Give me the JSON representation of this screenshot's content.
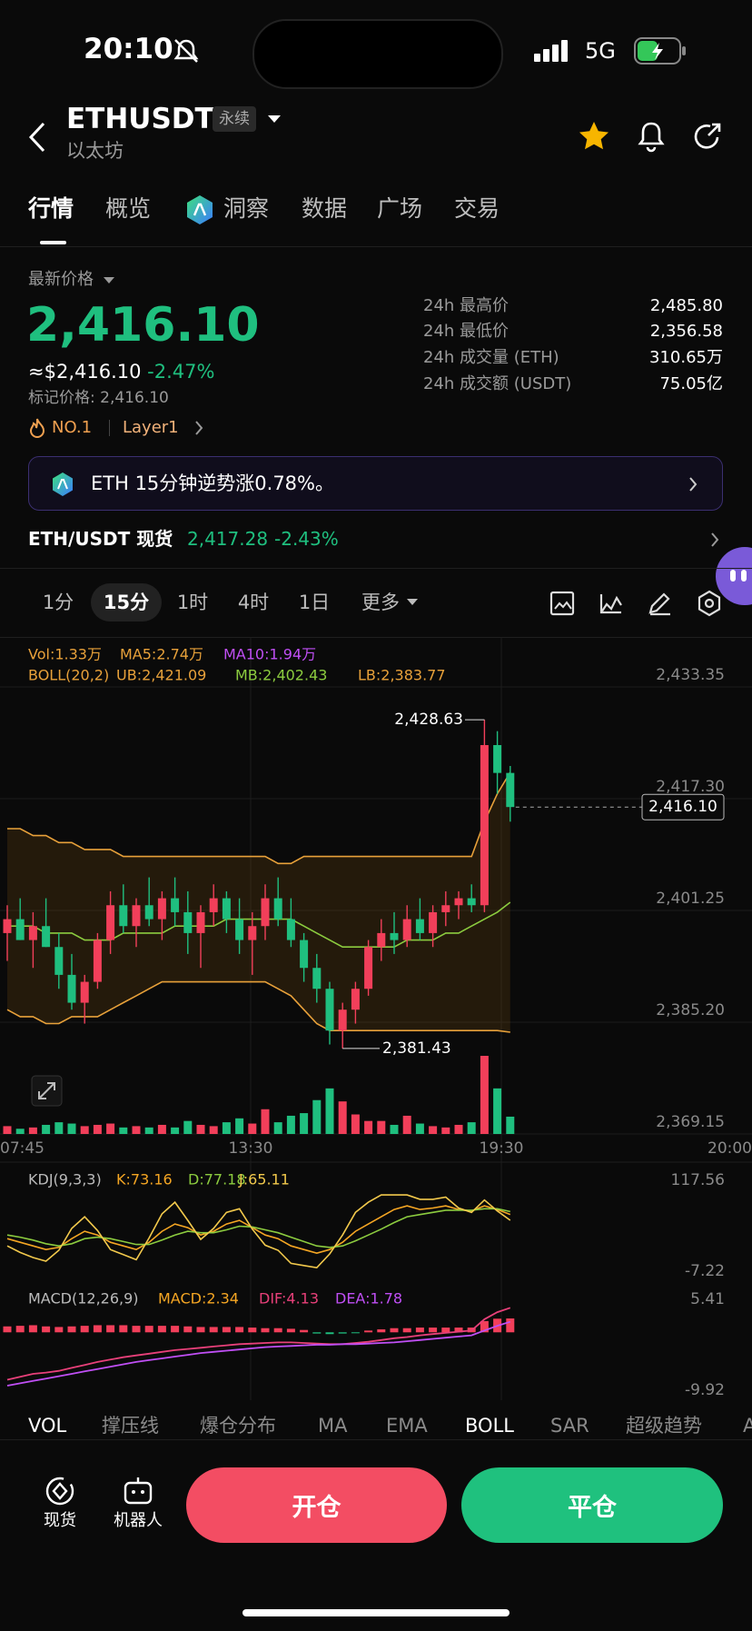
{
  "status_bar": {
    "time": "20:10",
    "network": "5G"
  },
  "header": {
    "symbol": "ETHUSDT",
    "contract": "永续",
    "name": "以太坊"
  },
  "tabs": [
    "行情",
    "概览",
    "洞察",
    "数据",
    "广场",
    "交易"
  ],
  "price": {
    "label": "最新价格",
    "last": "2,416.10",
    "usd": "≈$2,416.10",
    "change": "-2.47%",
    "mark": "标记价格: 2,416.10",
    "rank": "NO.1",
    "sector": "Layer1"
  },
  "stats": [
    {
      "label": "24h 最高价",
      "value": "2,485.80"
    },
    {
      "label": "24h 最低价",
      "value": "2,356.58"
    },
    {
      "label": "24h 成交量 (ETH)",
      "value": "310.65万"
    },
    {
      "label": "24h 成交额 (USDT)",
      "value": "75.05亿"
    }
  ],
  "banner": "ETH 15分钟逆势涨0.78%。",
  "spot": {
    "label": "ETH/USDT 现货",
    "price": "2,417.28",
    "change": "-2.43%"
  },
  "intervals": [
    "1分",
    "15分",
    "1时",
    "4时",
    "1日",
    "更多"
  ],
  "chart": {
    "type": "candlestick",
    "legend": {
      "vol": "Vol:1.33万",
      "ma5": "MA5:2.74万",
      "ma10": "MA10:1.94万",
      "boll": "BOLL(20,2)",
      "ub": "UB:2,421.09",
      "mb": "MB:2,402.43",
      "lb": "LB:2,383.77"
    },
    "ylim": [
      2369.15,
      2433.35
    ],
    "yticks": [
      {
        "value": 2433.35,
        "label": "2,433.35"
      },
      {
        "value": 2417.3,
        "label": "2,417.30"
      },
      {
        "value": 2401.25,
        "label": "2,401.25"
      },
      {
        "value": 2385.2,
        "label": "2,385.20"
      },
      {
        "value": 2369.15,
        "label": "2,369.15"
      }
    ],
    "x_labels": [
      "07:45",
      "13:30",
      "19:30",
      "20:00"
    ],
    "up_color": "#f23f5a",
    "down_color": "#1fbf7f",
    "open": [
      2398,
      2400,
      2397,
      2399,
      2396,
      2392,
      2388,
      2391,
      2397,
      2402,
      2399,
      2402,
      2400,
      2403,
      2401,
      2398,
      2401,
      2403,
      2400,
      2397,
      2399,
      2403,
      2400,
      2397,
      2393,
      2390,
      2384,
      2387,
      2390,
      2396,
      2398,
      2397,
      2400,
      2398,
      2401,
      2402,
      2403,
      2402,
      2425,
      2421
    ],
    "high": [
      2402,
      2403,
      2401,
      2403,
      2398,
      2395,
      2392,
      2398,
      2404,
      2405,
      2403,
      2406,
      2404,
      2406,
      2404,
      2402,
      2405,
      2404,
      2403,
      2401,
      2405,
      2406,
      2403,
      2398,
      2395,
      2391,
      2388,
      2391,
      2397,
      2400,
      2401,
      2402,
      2403,
      2402,
      2404,
      2404,
      2405,
      2428.63,
      2427,
      2422
    ],
    "low": [
      2394,
      2397,
      2393,
      2396,
      2390,
      2387,
      2385,
      2390,
      2395,
      2398,
      2396,
      2399,
      2397,
      2399,
      2395,
      2393,
      2399,
      2398,
      2395,
      2392,
      2397,
      2399,
      2396,
      2391,
      2388,
      2382,
      2381.43,
      2385,
      2389,
      2394,
      2395,
      2396,
      2397,
      2396,
      2399,
      2400,
      2401,
      2401,
      2418,
      2414
    ],
    "close": [
      2400,
      2397,
      2399,
      2396,
      2392,
      2388,
      2391,
      2397,
      2402,
      2399,
      2402,
      2400,
      2403,
      2401,
      2398,
      2401,
      2403,
      2400,
      2397,
      2399,
      2403,
      2400,
      2397,
      2393,
      2390,
      2384,
      2387,
      2390,
      2396,
      2398,
      2397,
      2400,
      2398,
      2401,
      2402,
      2403,
      2402,
      2425,
      2421,
      2416.1
    ],
    "volume": [
      0.6,
      0.4,
      0.5,
      0.7,
      0.9,
      0.8,
      0.6,
      0.7,
      0.8,
      0.5,
      0.6,
      0.5,
      0.7,
      0.5,
      1.0,
      0.7,
      0.6,
      0.9,
      1.2,
      0.8,
      1.9,
      0.9,
      1.4,
      1.6,
      2.6,
      3.5,
      2.5,
      1.5,
      1.0,
      1.0,
      0.7,
      1.4,
      0.8,
      0.6,
      0.5,
      0.7,
      0.9,
      6.0,
      3.5,
      1.33
    ],
    "boll_upper": [
      2413,
      2413,
      2412,
      2412,
      2411,
      2411,
      2410,
      2410,
      2410,
      2409,
      2409,
      2409,
      2409,
      2409,
      2409,
      2409,
      2409,
      2409,
      2409,
      2409,
      2409,
      2408,
      2408,
      2409,
      2409,
      2409,
      2409,
      2409,
      2409,
      2409,
      2409,
      2409,
      2409,
      2409,
      2409,
      2409,
      2409,
      2414,
      2418,
      2421.09
    ],
    "boll_mid": [
      2399,
      2399,
      2399,
      2398,
      2398,
      2398,
      2397,
      2397,
      2397,
      2398,
      2398,
      2398,
      2398,
      2399,
      2399,
      2399,
      2399,
      2400,
      2400,
      2400,
      2400,
      2400,
      2400,
      2399,
      2398,
      2397,
      2396,
      2396,
      2396,
      2396,
      2396,
      2397,
      2397,
      2397,
      2398,
      2398,
      2399,
      2400,
      2401,
      2402.43
    ],
    "boll_lower": [
      2387,
      2386,
      2386,
      2385,
      2385,
      2386,
      2386,
      2386,
      2387,
      2388,
      2389,
      2390,
      2391,
      2391,
      2391,
      2391,
      2391,
      2391,
      2391,
      2391,
      2391,
      2390,
      2389,
      2387,
      2385,
      2384,
      2384,
      2384,
      2384,
      2384,
      2384,
      2384,
      2384,
      2384,
      2384,
      2384,
      2384,
      2384,
      2384,
      2383.77
    ],
    "high_label": "2,428.63",
    "low_label": "2,381.43",
    "last_label": "2,416.10"
  },
  "kdj": {
    "title": "KDJ(9,3,3)",
    "k_label": "K:73.16",
    "d_label": "D:77.18",
    "j_label": "J:65.11",
    "ylim": [
      -7.22,
      117.56
    ],
    "yticks": [
      117.56,
      -7.22
    ],
    "k": [
      40,
      35,
      30,
      25,
      28,
      40,
      50,
      45,
      35,
      30,
      25,
      35,
      50,
      60,
      55,
      45,
      50,
      60,
      65,
      55,
      45,
      40,
      30,
      25,
      20,
      25,
      35,
      50,
      60,
      70,
      80,
      85,
      80,
      82,
      85,
      80,
      78,
      85,
      80,
      73.16
    ],
    "d": [
      45,
      42,
      38,
      33,
      30,
      33,
      40,
      42,
      40,
      36,
      32,
      32,
      38,
      45,
      50,
      48,
      48,
      52,
      57,
      56,
      52,
      48,
      42,
      36,
      30,
      28,
      30,
      37,
      45,
      53,
      62,
      70,
      73,
      76,
      79,
      79,
      79,
      81,
      81,
      77.18
    ],
    "j": [
      30,
      21,
      14,
      9,
      24,
      54,
      70,
      51,
      25,
      18,
      11,
      41,
      74,
      90,
      65,
      39,
      54,
      76,
      81,
      53,
      31,
      24,
      6,
      3,
      0,
      19,
      45,
      76,
      90,
      100,
      100,
      100,
      94,
      94,
      97,
      82,
      76,
      93,
      78,
      65.11
    ]
  },
  "macd": {
    "title": "MACD(12,26,9)",
    "macd_label": "MACD:2.34",
    "dif_label": "DIF:4.13",
    "dea_label": "DEA:1.78",
    "ylim": [
      -9.92,
      5.41
    ],
    "yticks": [
      5.41,
      -9.92
    ],
    "hist": [
      1,
      1.1,
      1.2,
      1,
      0.9,
      1,
      1.1,
      1.2,
      1.2,
      1.2,
      1.1,
      1.1,
      1.1,
      1.1,
      1,
      0.9,
      0.9,
      0.9,
      0.9,
      0.8,
      0.7,
      0.7,
      0.6,
      0.4,
      -0.2,
      -0.3,
      -0.2,
      -0.1,
      0.3,
      0.5,
      0.7,
      0.7,
      0.8,
      0.8,
      0.8,
      0.8,
      0.8,
      1.9,
      2.3,
      2.34
    ],
    "dif": [
      -8,
      -7.5,
      -7,
      -6.8,
      -6.5,
      -6,
      -5.5,
      -5,
      -4.6,
      -4.2,
      -3.9,
      -3.6,
      -3.3,
      -3,
      -2.8,
      -2.6,
      -2.4,
      -2.2,
      -2,
      -1.9,
      -1.8,
      -1.7,
      -1.7,
      -1.8,
      -1.9,
      -2,
      -2,
      -1.8,
      -1.6,
      -1.3,
      -1,
      -0.8,
      -0.5,
      -0.3,
      -0.1,
      0.1,
      0.3,
      2.2,
      3.4,
      4.13
    ],
    "dea": [
      -9,
      -8.6,
      -8.2,
      -7.8,
      -7.4,
      -7,
      -6.6,
      -6.2,
      -5.8,
      -5.4,
      -5,
      -4.7,
      -4.4,
      -4.1,
      -3.8,
      -3.5,
      -3.3,
      -3.1,
      -2.9,
      -2.7,
      -2.5,
      -2.4,
      -2.3,
      -2.2,
      -2.1,
      -2.1,
      -2,
      -2,
      -1.9,
      -1.8,
      -1.7,
      -1.5,
      -1.3,
      -1.1,
      -0.9,
      -0.7,
      -0.5,
      0.3,
      1.1,
      1.78
    ]
  },
  "indicator_tabs": [
    "VOL",
    "撑压线",
    "爆仓分布",
    "MA",
    "EMA",
    "BOLL",
    "SAR",
    "超级趋势",
    "A"
  ],
  "footer": {
    "spot": "现货",
    "bot": "机器人",
    "open": "开仓",
    "close": "平仓"
  }
}
